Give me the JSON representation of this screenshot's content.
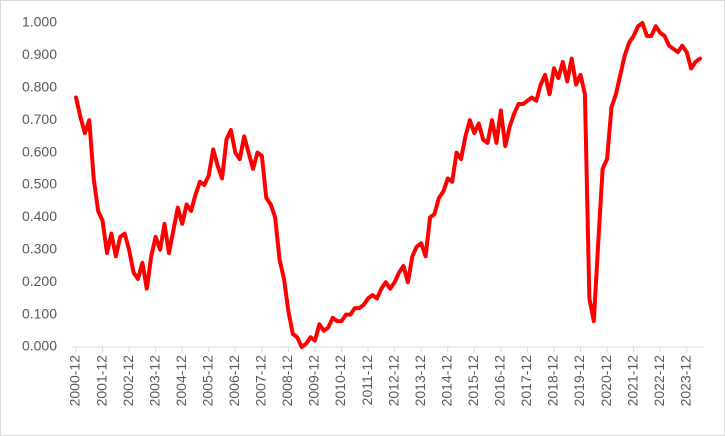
{
  "chart_data": {
    "type": "line",
    "categories": [
      "2000-12",
      null,
      null,
      null,
      null,
      null,
      "2001-12",
      null,
      null,
      null,
      null,
      null,
      "2002-12",
      null,
      null,
      null,
      null,
      null,
      "2003-12",
      null,
      null,
      null,
      null,
      null,
      "2004-12",
      null,
      null,
      null,
      null,
      null,
      "2005-12",
      null,
      null,
      null,
      null,
      null,
      "2006-12",
      null,
      null,
      null,
      null,
      null,
      "2007-12",
      null,
      null,
      null,
      null,
      null,
      "2008-12",
      null,
      null,
      null,
      null,
      null,
      "2009-12",
      null,
      null,
      null,
      null,
      null,
      "2010-12",
      null,
      null,
      null,
      null,
      null,
      "2011-12",
      null,
      null,
      null,
      null,
      null,
      "2012-12",
      null,
      null,
      null,
      null,
      null,
      "2013-12",
      null,
      null,
      null,
      null,
      null,
      "2014-12",
      null,
      null,
      null,
      null,
      null,
      "2015-12",
      null,
      null,
      null,
      null,
      null,
      "2016-12",
      null,
      null,
      null,
      null,
      null,
      "2017-12",
      null,
      null,
      null,
      null,
      null,
      "2018-12",
      null,
      null,
      null,
      null,
      null,
      "2019-12",
      null,
      null,
      null,
      null,
      null,
      "2020-12",
      null,
      null,
      null,
      null,
      null,
      "2021-12",
      null,
      null,
      null,
      null,
      null,
      "2022-12",
      null,
      null,
      null,
      null,
      null,
      "2023-12",
      null,
      null,
      null
    ],
    "series": [
      {
        "color": "#ff0000",
        "values": [
          0.77,
          0.71,
          0.66,
          0.7,
          0.52,
          0.42,
          0.39,
          0.29,
          0.35,
          0.28,
          0.34,
          0.35,
          0.3,
          0.23,
          0.21,
          0.26,
          0.18,
          0.28,
          0.34,
          0.3,
          0.38,
          0.29,
          0.36,
          0.43,
          0.38,
          0.44,
          0.42,
          0.47,
          0.51,
          0.5,
          0.53,
          0.61,
          0.56,
          0.52,
          0.64,
          0.67,
          0.6,
          0.58,
          0.65,
          0.6,
          0.55,
          0.6,
          0.59,
          0.46,
          0.44,
          0.4,
          0.27,
          0.21,
          0.11,
          0.04,
          0.03,
          0.0,
          0.01,
          0.03,
          0.02,
          0.07,
          0.05,
          0.06,
          0.09,
          0.08,
          0.08,
          0.1,
          0.1,
          0.12,
          0.12,
          0.13,
          0.15,
          0.16,
          0.15,
          0.18,
          0.2,
          0.18,
          0.2,
          0.23,
          0.25,
          0.2,
          0.28,
          0.31,
          0.32,
          0.28,
          0.4,
          0.41,
          0.46,
          0.48,
          0.52,
          0.51,
          0.6,
          0.58,
          0.65,
          0.7,
          0.66,
          0.69,
          0.64,
          0.63,
          0.7,
          0.63,
          0.73,
          0.62,
          0.68,
          0.72,
          0.75,
          0.75,
          0.76,
          0.77,
          0.76,
          0.81,
          0.84,
          0.78,
          0.86,
          0.83,
          0.88,
          0.82,
          0.89,
          0.81,
          0.84,
          0.78,
          0.15,
          0.08,
          0.32,
          0.55,
          0.58,
          0.74,
          0.78,
          0.84,
          0.9,
          0.94,
          0.96,
          0.99,
          1.0,
          0.96,
          0.96,
          0.99,
          0.97,
          0.96,
          0.93,
          0.92,
          0.91,
          0.93,
          0.91,
          0.86,
          0.88,
          0.89
        ]
      }
    ],
    "ylim": [
      0,
      1
    ],
    "yticks": [
      {
        "value": 0,
        "label": "0.000"
      },
      {
        "value": 0.1,
        "label": "0.100"
      },
      {
        "value": 0.2,
        "label": "0.200"
      },
      {
        "value": 0.3,
        "label": "0.300"
      },
      {
        "value": 0.4,
        "label": "0.400"
      },
      {
        "value": 0.5,
        "label": "0.500"
      },
      {
        "value": 0.6,
        "label": "0.600"
      },
      {
        "value": 0.7,
        "label": "0.700"
      },
      {
        "value": 0.8,
        "label": "0.800"
      },
      {
        "value": 0.9,
        "label": "0.900"
      },
      {
        "value": 1,
        "label": "1.000"
      }
    ],
    "grid": false
  }
}
